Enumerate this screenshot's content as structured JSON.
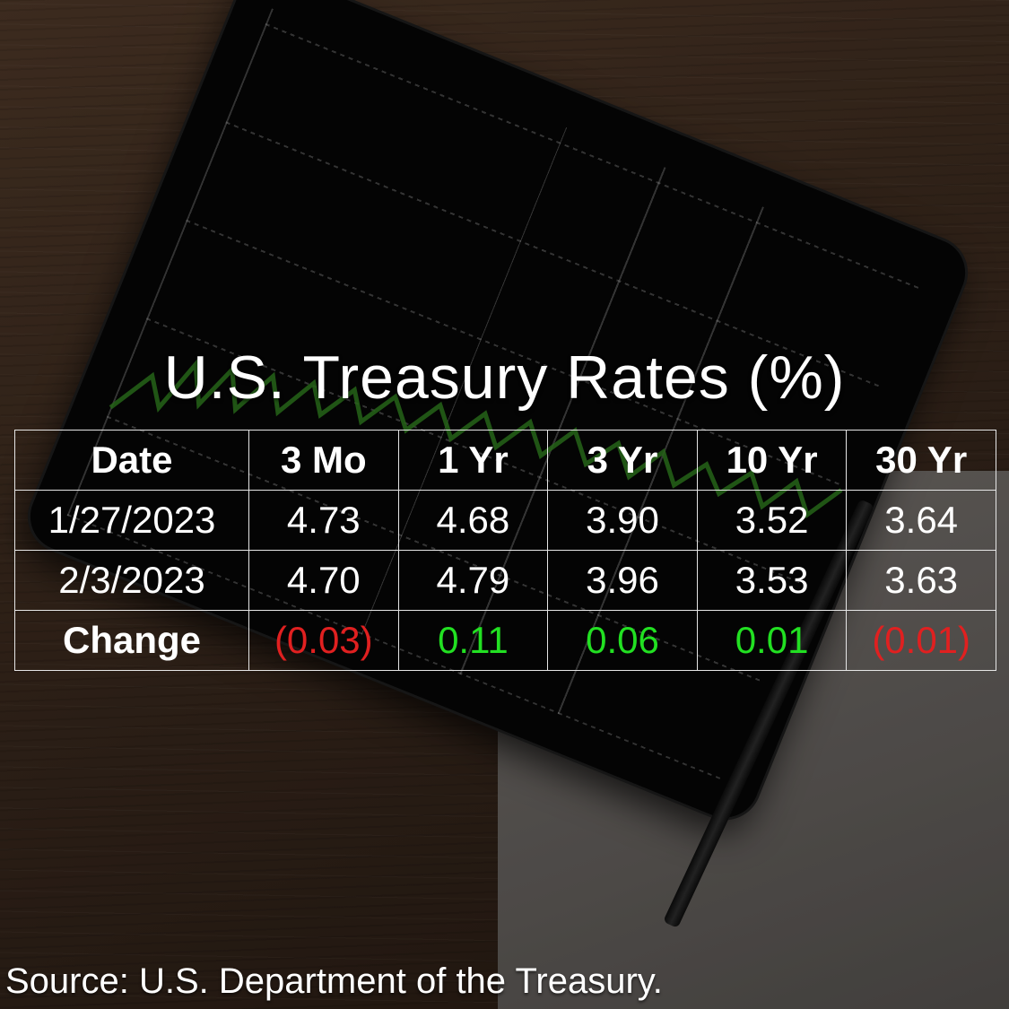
{
  "title": "U.S. Treasury Rates (%)",
  "table": {
    "headers": [
      "Date",
      "3 Mo",
      "1 Yr",
      "3 Yr",
      "10 Yr",
      "30 Yr"
    ],
    "rows": [
      {
        "label": "1/27/2023",
        "values": [
          "4.73",
          "4.68",
          "3.90",
          "3.52",
          "3.64"
        ]
      },
      {
        "label": "2/3/2023",
        "values": [
          "4.70",
          "4.79",
          "3.96",
          "3.53",
          "3.63"
        ]
      }
    ],
    "change": {
      "label": "Change",
      "values": [
        "(0.03)",
        "0.11",
        "0.06",
        "0.01",
        "(0.01)"
      ]
    }
  },
  "colors": {
    "negative_change": "#e02020",
    "positive_change": "#22e022",
    "tablet_line": "#2f7a1f"
  },
  "background_photo": "tablet showing green stock line chart on wooden desk with paper and pencil",
  "source": "Source: U.S. Department of the Treasury."
}
